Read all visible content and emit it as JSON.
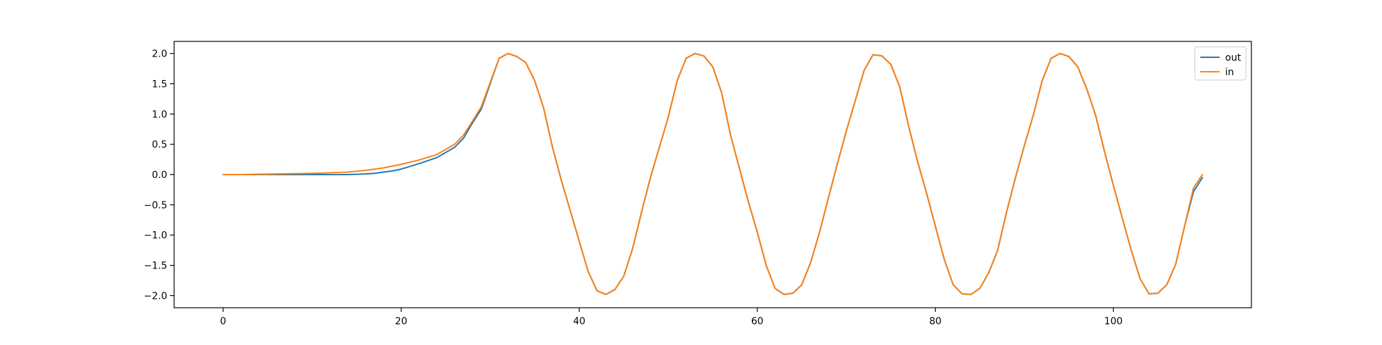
{
  "chart_data": {
    "type": "line",
    "title": "",
    "xlabel": "",
    "ylabel": "",
    "xlim": [
      -5.5,
      115.5
    ],
    "ylim": [
      -2.2,
      2.2
    ],
    "xticks": [
      0,
      20,
      40,
      60,
      80,
      100
    ],
    "yticks": [
      -2.0,
      -1.5,
      -1.0,
      -0.5,
      0.0,
      0.5,
      1.0,
      1.5,
      2.0
    ],
    "xtick_labels": [
      "0",
      "20",
      "40",
      "60",
      "80",
      "100"
    ],
    "ytick_labels": [
      "−2.0",
      "−1.5",
      "−1.0",
      "−0.5",
      "0.0",
      "0.5",
      "1.0",
      "1.5",
      "2.0"
    ],
    "grid": false,
    "legend": {
      "placement": "top-right"
    },
    "series": [
      {
        "name": "out",
        "color": "#1f77b4",
        "x": [
          0,
          2,
          4,
          6,
          8,
          10,
          12,
          14,
          16,
          17,
          18,
          19,
          20,
          22,
          24,
          26,
          27,
          28,
          29,
          30,
          31,
          32,
          33,
          34,
          35,
          36,
          37,
          38,
          39,
          40,
          41,
          42,
          43,
          44,
          45,
          46,
          47,
          48,
          49,
          50,
          51,
          52,
          53,
          54,
          55,
          56,
          57,
          58,
          59,
          60,
          61,
          62,
          63,
          64,
          65,
          66,
          67,
          68,
          69,
          70,
          71,
          72,
          73,
          74,
          75,
          76,
          77,
          78,
          79,
          80,
          81,
          82,
          83,
          84,
          85,
          86,
          87,
          88,
          89,
          90,
          91,
          92,
          93,
          94,
          95,
          96,
          97,
          98,
          99,
          100,
          101,
          102,
          103,
          104,
          105,
          106,
          107,
          108,
          109,
          110
        ],
        "y": [
          0.0,
          0.0,
          0.0,
          0.0,
          0.0,
          0.0,
          0.0,
          0.0,
          0.01,
          0.02,
          0.04,
          0.06,
          0.09,
          0.18,
          0.28,
          0.45,
          0.6,
          0.85,
          1.08,
          1.5,
          1.92,
          2.0,
          1.95,
          1.85,
          1.55,
          1.1,
          0.45,
          -0.1,
          -0.6,
          -1.1,
          -1.6,
          -1.92,
          -1.98,
          -1.9,
          -1.68,
          -1.22,
          -0.62,
          -0.05,
          0.45,
          0.95,
          1.55,
          1.92,
          2.0,
          1.96,
          1.78,
          1.35,
          0.65,
          0.1,
          -0.45,
          -0.95,
          -1.5,
          -1.88,
          -1.98,
          -1.96,
          -1.82,
          -1.45,
          -0.95,
          -0.38,
          0.18,
          0.72,
          1.22,
          1.72,
          1.98,
          1.96,
          1.82,
          1.45,
          0.8,
          0.22,
          -0.3,
          -0.85,
          -1.4,
          -1.82,
          -1.97,
          -1.98,
          -1.88,
          -1.62,
          -1.25,
          -0.62,
          -0.05,
          0.48,
          0.98,
          1.55,
          1.92,
          2.0,
          1.95,
          1.78,
          1.42,
          0.98,
          0.38,
          -0.18,
          -0.72,
          -1.25,
          -1.72,
          -1.97,
          -1.96,
          -1.82,
          -1.48,
          -0.85,
          -0.28,
          -0.05
        ]
      },
      {
        "name": "in",
        "color": "#ff7f0e",
        "x": [
          0,
          2,
          4,
          6,
          8,
          10,
          12,
          14,
          16,
          17,
          18,
          19,
          20,
          22,
          24,
          26,
          27,
          28,
          29,
          30,
          31,
          32,
          33,
          34,
          35,
          36,
          37,
          38,
          39,
          40,
          41,
          42,
          43,
          44,
          45,
          46,
          47,
          48,
          49,
          50,
          51,
          52,
          53,
          54,
          55,
          56,
          57,
          58,
          59,
          60,
          61,
          62,
          63,
          64,
          65,
          66,
          67,
          68,
          69,
          70,
          71,
          72,
          73,
          74,
          75,
          76,
          77,
          78,
          79,
          80,
          81,
          82,
          83,
          84,
          85,
          86,
          87,
          88,
          89,
          90,
          91,
          92,
          93,
          94,
          95,
          96,
          97,
          98,
          99,
          100,
          101,
          102,
          103,
          104,
          105,
          106,
          107,
          108,
          109,
          110
        ],
        "y": [
          0.0,
          0.0,
          0.005,
          0.01,
          0.015,
          0.02,
          0.03,
          0.04,
          0.07,
          0.09,
          0.11,
          0.14,
          0.17,
          0.24,
          0.33,
          0.5,
          0.65,
          0.88,
          1.12,
          1.52,
          1.92,
          2.0,
          1.95,
          1.85,
          1.55,
          1.1,
          0.45,
          -0.1,
          -0.6,
          -1.1,
          -1.6,
          -1.92,
          -1.98,
          -1.9,
          -1.68,
          -1.22,
          -0.62,
          -0.05,
          0.45,
          0.95,
          1.55,
          1.92,
          2.0,
          1.96,
          1.78,
          1.35,
          0.65,
          0.1,
          -0.45,
          -0.95,
          -1.5,
          -1.88,
          -1.98,
          -1.96,
          -1.82,
          -1.45,
          -0.95,
          -0.38,
          0.18,
          0.72,
          1.22,
          1.72,
          1.98,
          1.96,
          1.82,
          1.45,
          0.8,
          0.22,
          -0.3,
          -0.85,
          -1.4,
          -1.82,
          -1.97,
          -1.98,
          -1.88,
          -1.62,
          -1.25,
          -0.62,
          -0.05,
          0.48,
          0.98,
          1.55,
          1.92,
          2.0,
          1.95,
          1.78,
          1.42,
          0.98,
          0.38,
          -0.18,
          -0.72,
          -1.25,
          -1.72,
          -1.97,
          -1.96,
          -1.82,
          -1.48,
          -0.85,
          -0.22,
          0.0
        ]
      }
    ]
  }
}
